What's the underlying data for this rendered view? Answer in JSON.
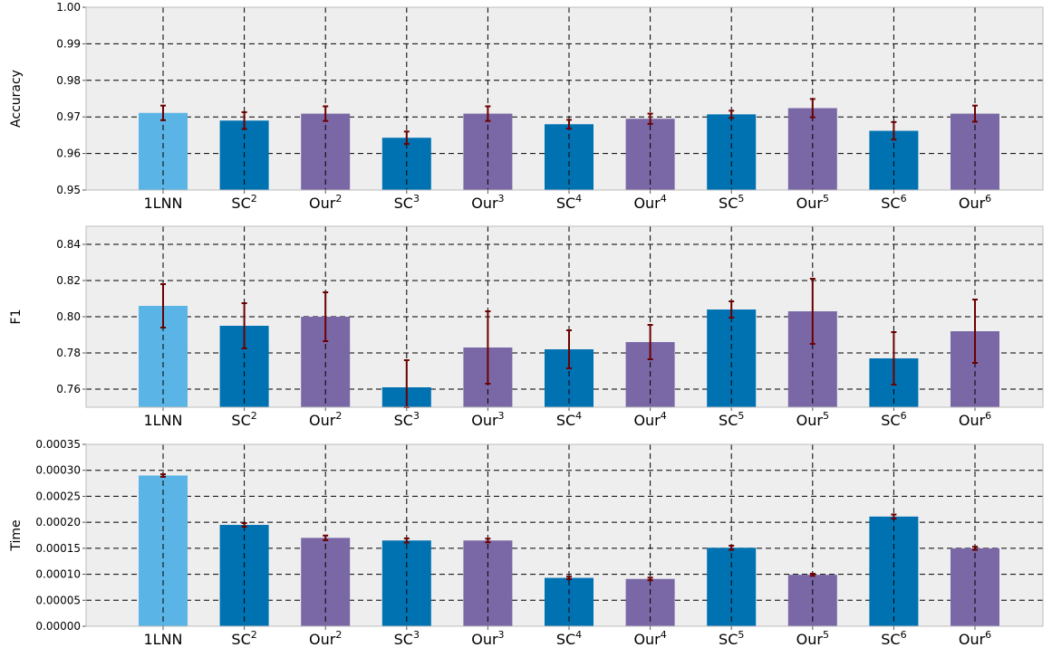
{
  "colors": {
    "baseline": "#5ab4e5",
    "sc": "#0072b2",
    "ours": "#7a68a6",
    "error": "#6b0000",
    "panel_bg": "#eeeeee"
  },
  "chart_data": [
    {
      "type": "bar",
      "ylabel": "Accuracy",
      "ylim": [
        0.95,
        1.0
      ],
      "yticks": [
        "0.95",
        "0.96",
        "0.97",
        "0.98",
        "0.99",
        "1.00"
      ],
      "grid": true,
      "categories": [
        {
          "base": "1LNN",
          "sup": ""
        },
        {
          "base": "SC",
          "sup": "2"
        },
        {
          "base": "Our",
          "sup": "2"
        },
        {
          "base": "SC",
          "sup": "3"
        },
        {
          "base": "Our",
          "sup": "3"
        },
        {
          "base": "SC",
          "sup": "4"
        },
        {
          "base": "Our",
          "sup": "4"
        },
        {
          "base": "SC",
          "sup": "5"
        },
        {
          "base": "Our",
          "sup": "5"
        },
        {
          "base": "SC",
          "sup": "6"
        },
        {
          "base": "Our",
          "sup": "6"
        }
      ],
      "groups": [
        "baseline",
        "sc",
        "ours",
        "sc",
        "ours",
        "sc",
        "ours",
        "sc",
        "ours",
        "sc",
        "ours"
      ],
      "values": [
        0.9711,
        0.969,
        0.9709,
        0.9643,
        0.9709,
        0.968,
        0.9695,
        0.9707,
        0.9724,
        0.9662,
        0.9709
      ],
      "errors": [
        0.002,
        0.0023,
        0.002,
        0.0017,
        0.002,
        0.0012,
        0.0014,
        0.001,
        0.0025,
        0.0024,
        0.0022
      ]
    },
    {
      "type": "bar",
      "ylabel": "F1",
      "ylim": [
        0.75,
        0.85
      ],
      "yticks": [
        "0.76",
        "0.78",
        "0.80",
        "0.82",
        "0.84"
      ],
      "grid": true,
      "categories": [
        {
          "base": "1LNN",
          "sup": ""
        },
        {
          "base": "SC",
          "sup": "2"
        },
        {
          "base": "Our",
          "sup": "2"
        },
        {
          "base": "SC",
          "sup": "3"
        },
        {
          "base": "Our",
          "sup": "3"
        },
        {
          "base": "SC",
          "sup": "4"
        },
        {
          "base": "Our",
          "sup": "4"
        },
        {
          "base": "SC",
          "sup": "5"
        },
        {
          "base": "Our",
          "sup": "5"
        },
        {
          "base": "SC",
          "sup": "6"
        },
        {
          "base": "Our",
          "sup": "6"
        }
      ],
      "groups": [
        "baseline",
        "sc",
        "ours",
        "sc",
        "ours",
        "sc",
        "ours",
        "sc",
        "ours",
        "sc",
        "ours"
      ],
      "values": [
        0.806,
        0.795,
        0.8,
        0.761,
        0.783,
        0.782,
        0.786,
        0.804,
        0.803,
        0.777,
        0.792
      ],
      "errors": [
        0.012,
        0.0125,
        0.0135,
        0.015,
        0.02,
        0.0105,
        0.0095,
        0.0045,
        0.018,
        0.0145,
        0.0175
      ]
    },
    {
      "type": "bar",
      "ylabel": "Time",
      "ylim": [
        0.0,
        0.00035
      ],
      "yticks": [
        "0.00000",
        "0.00005",
        "0.00010",
        "0.00015",
        "0.00020",
        "0.00025",
        "0.00030",
        "0.00035"
      ],
      "grid": true,
      "categories": [
        {
          "base": "1LNN",
          "sup": ""
        },
        {
          "base": "SC",
          "sup": "2"
        },
        {
          "base": "Our",
          "sup": "2"
        },
        {
          "base": "SC",
          "sup": "3"
        },
        {
          "base": "Our",
          "sup": "3"
        },
        {
          "base": "SC",
          "sup": "4"
        },
        {
          "base": "Our",
          "sup": "4"
        },
        {
          "base": "SC",
          "sup": "5"
        },
        {
          "base": "Our",
          "sup": "5"
        },
        {
          "base": "SC",
          "sup": "6"
        },
        {
          "base": "Our",
          "sup": "6"
        }
      ],
      "groups": [
        "baseline",
        "sc",
        "ours",
        "sc",
        "ours",
        "sc",
        "ours",
        "sc",
        "ours",
        "sc",
        "ours"
      ],
      "values": [
        0.00029,
        0.000195,
        0.00017,
        0.000165,
        0.000165,
        9.3e-05,
        9.1e-05,
        0.000151,
        9.9e-05,
        0.000211,
        0.00015
      ],
      "errors": [
        2.5e-06,
        3.5e-06,
        4.5e-06,
        4e-06,
        3.5e-06,
        2.5e-06,
        2.5e-06,
        4e-06,
        2e-06,
        4e-06,
        3e-06
      ]
    }
  ]
}
